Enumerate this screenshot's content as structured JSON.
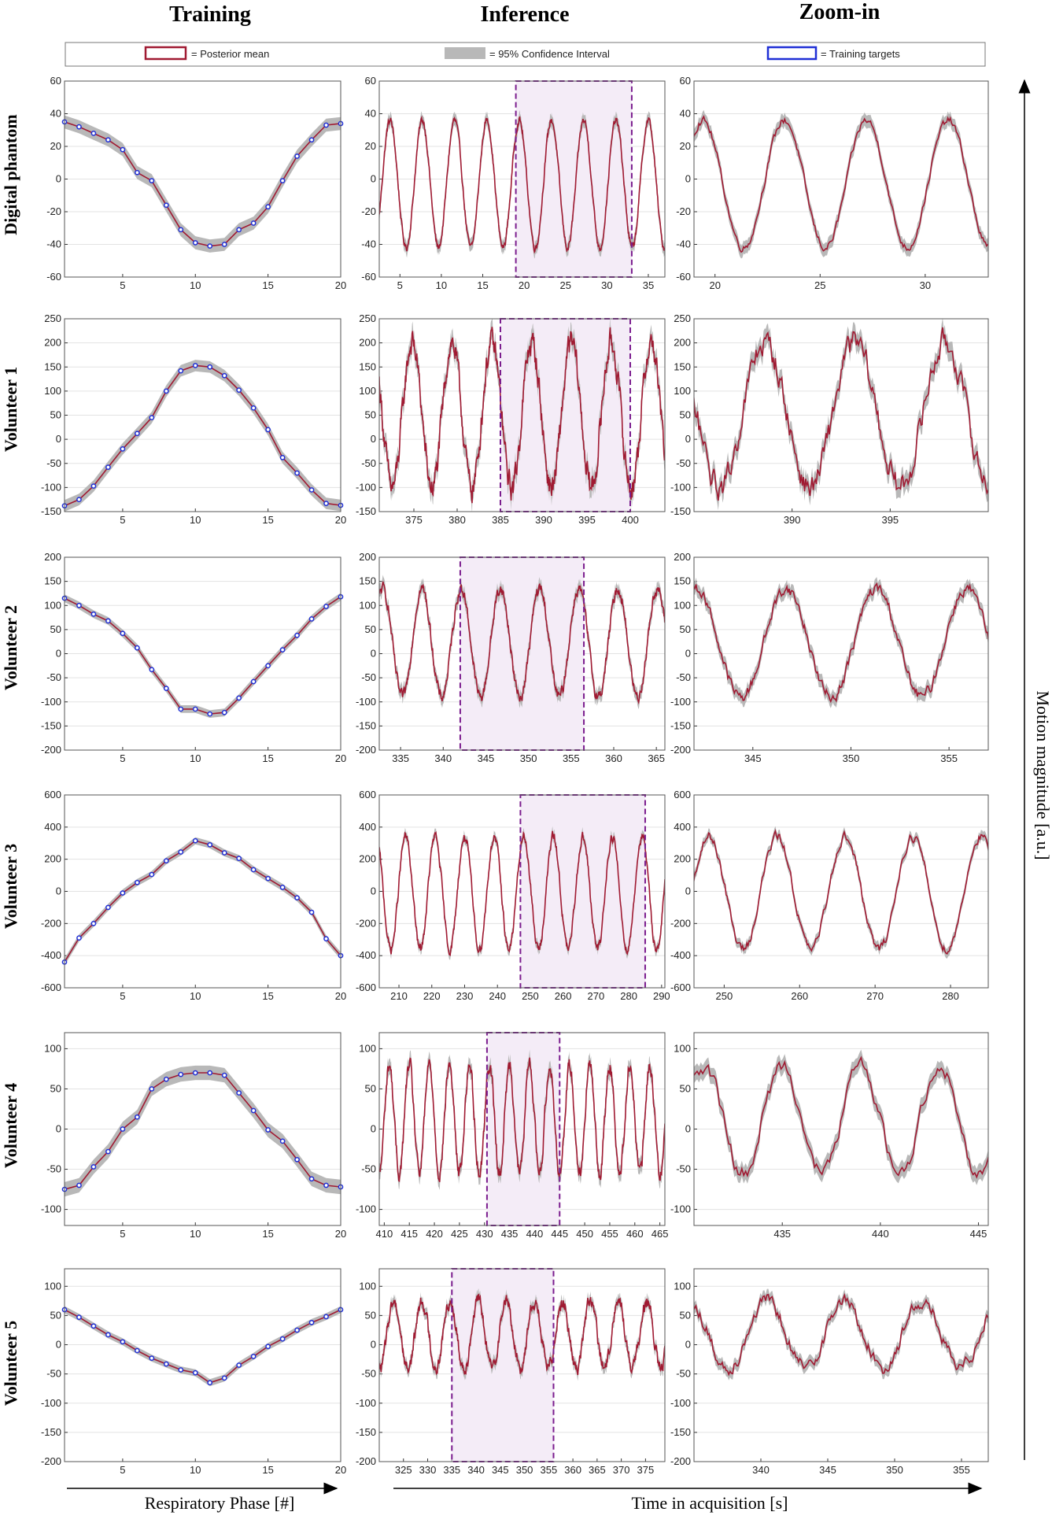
{
  "column_titles": [
    "Training",
    "Inference",
    "Zoom-in"
  ],
  "row_labels": [
    "Digital phantom",
    "Volunteer 1",
    "Volunteer 2",
    "Volunteer 3",
    "Volunteer 4",
    "Volunteer 5"
  ],
  "legend": {
    "posterior_mean": "= Posterior mean",
    "confidence": "= 95% Confidence Interval",
    "targets": "= Training targets"
  },
  "xlabel_training": "Respiratory Phase [#]",
  "xlabel_time": "Time in acquisition [s]",
  "ylabel": "Motion magnitude [a.u.]",
  "colors": {
    "mean": "#a01a32",
    "ci": "#b8b8b8",
    "target": "#1f2fd6",
    "window_fill": "#f4ecf7",
    "window_border": "#7b1d8e"
  },
  "chart_data": [
    {
      "type": "line",
      "row": 0,
      "ylim": [
        -60,
        60
      ],
      "yticks": [
        -60,
        -40,
        -20,
        0,
        20,
        40,
        60
      ],
      "training": {
        "xlim": [
          1,
          20
        ],
        "xticks": [
          5,
          10,
          15,
          20
        ],
        "ci": 4,
        "targets": [
          35,
          32,
          28,
          24,
          18,
          4,
          -1,
          -16,
          -31,
          -39,
          -41,
          -40,
          -31,
          -27,
          -17,
          -1,
          14,
          24,
          33,
          34
        ]
      },
      "inference": {
        "xlim": [
          2.5,
          37
        ],
        "xticks": [
          5,
          10,
          15,
          20,
          25,
          30,
          35
        ],
        "window": [
          19,
          33
        ],
        "period": 3.9,
        "t0": 3.8,
        "max": 36,
        "min": -42,
        "noise": 2,
        "ci": 4
      },
      "zoom": {
        "xlim": [
          19,
          33
        ],
        "xticks": [
          20,
          25,
          30
        ]
      }
    },
    {
      "type": "line",
      "row": 1,
      "ylim": [
        -150,
        250
      ],
      "yticks": [
        -150,
        -100,
        -50,
        0,
        50,
        100,
        150,
        200,
        250
      ],
      "training": {
        "xlim": [
          1,
          20
        ],
        "xticks": [
          5,
          10,
          15,
          20
        ],
        "ci": 12,
        "targets": [
          -138,
          -125,
          -97,
          -58,
          -20,
          12,
          45,
          100,
          142,
          153,
          150,
          132,
          102,
          65,
          20,
          -38,
          -70,
          -105,
          -133,
          -137
        ]
      },
      "inference": {
        "xlim": [
          371,
          404
        ],
        "xticks": [
          375,
          380,
          385,
          390,
          395,
          400
        ],
        "window": [
          385,
          400
        ],
        "period": 4.6,
        "t0": 374.8,
        "max": 200,
        "min": -100,
        "noise": 22,
        "ci": 20
      },
      "zoom": {
        "xlim": [
          385,
          400
        ],
        "xticks": [
          390,
          395
        ]
      }
    },
    {
      "type": "line",
      "row": 2,
      "ylim": [
        -200,
        200
      ],
      "yticks": [
        -200,
        -150,
        -100,
        -50,
        0,
        50,
        100,
        150,
        200
      ],
      "training": {
        "xlim": [
          1,
          20
        ],
        "xticks": [
          5,
          10,
          15,
          20
        ],
        "ci": 8,
        "targets": [
          115,
          100,
          82,
          68,
          42,
          12,
          -33,
          -72,
          -115,
          -115,
          -125,
          -122,
          -92,
          -58,
          -25,
          8,
          38,
          72,
          98,
          118
        ]
      },
      "inference": {
        "xlim": [
          332.5,
          366
        ],
        "xticks": [
          335,
          340,
          345,
          350,
          355,
          360,
          365
        ],
        "window": [
          342,
          356.5
        ],
        "period": 4.6,
        "t0": 337.5,
        "max": 135,
        "min": -90,
        "noise": 10,
        "ci": 14
      },
      "zoom": {
        "xlim": [
          342,
          357
        ],
        "xticks": [
          345,
          350,
          355
        ]
      }
    },
    {
      "type": "line",
      "row": 3,
      "ylim": [
        -600,
        600
      ],
      "yticks": [
        -600,
        -400,
        -200,
        0,
        200,
        400,
        600
      ],
      "training": {
        "xlim": [
          1,
          20
        ],
        "xticks": [
          5,
          10,
          15,
          20
        ],
        "ci": 22,
        "targets": [
          -440,
          -290,
          -200,
          -100,
          -10,
          55,
          105,
          190,
          245,
          315,
          290,
          240,
          205,
          135,
          80,
          25,
          -40,
          -130,
          -295,
          -400
        ]
      },
      "inference": {
        "xlim": [
          204,
          291
        ],
        "xticks": [
          210,
          220,
          230,
          240,
          250,
          260,
          270,
          280,
          290
        ],
        "window": [
          247,
          285
        ],
        "period": 9,
        "t0": 212,
        "max": 340,
        "min": -360,
        "noise": 25,
        "ci": 30
      },
      "zoom": {
        "xlim": [
          246,
          285
        ],
        "xticks": [
          250,
          260,
          270,
          280
        ]
      }
    },
    {
      "type": "line",
      "row": 4,
      "ylim": [
        -120,
        120
      ],
      "yticks": [
        -100,
        -50,
        0,
        50,
        100
      ],
      "training": {
        "xlim": [
          1,
          20
        ],
        "xticks": [
          5,
          10,
          15,
          20
        ],
        "ci": 9,
        "targets": [
          -75,
          -70,
          -47,
          -28,
          0,
          15,
          50,
          62,
          68,
          70,
          70,
          67,
          45,
          23,
          -1,
          -15,
          -38,
          -62,
          -70,
          -72
        ]
      },
      "inference": {
        "xlim": [
          409,
          466
        ],
        "xticks": [
          410,
          415,
          420,
          425,
          430,
          435,
          440,
          445,
          450,
          455,
          460,
          465
        ],
        "window": [
          430.5,
          445
        ],
        "period": 4,
        "t0": 411,
        "max": 80,
        "min": -55,
        "noise": 8,
        "ci": 10
      },
      "zoom": {
        "xlim": [
          430.5,
          445.5
        ],
        "xticks": [
          435,
          440,
          445
        ]
      }
    },
    {
      "type": "line",
      "row": 5,
      "ylim": [
        -200,
        130
      ],
      "yticks": [
        -200,
        -150,
        -100,
        -50,
        0,
        50,
        100
      ],
      "training": {
        "xlim": [
          1,
          20
        ],
        "xticks": [
          5,
          10,
          15,
          20
        ],
        "ci": 6,
        "targets": [
          60,
          47,
          32,
          17,
          5,
          -10,
          -23,
          -33,
          -43,
          -48,
          -65,
          -57,
          -35,
          -20,
          -3,
          10,
          25,
          38,
          48,
          60
        ]
      },
      "inference": {
        "xlim": [
          320,
          379
        ],
        "xticks": [
          325,
          330,
          335,
          340,
          345,
          350,
          355,
          360,
          365,
          370,
          375
        ],
        "window": [
          335,
          356
        ],
        "period": 5.8,
        "t0": 323,
        "max": 75,
        "min": -40,
        "noise": 10,
        "ci": 10
      },
      "zoom": {
        "xlim": [
          335,
          357
        ],
        "xticks": [
          340,
          345,
          350,
          355
        ]
      }
    }
  ]
}
